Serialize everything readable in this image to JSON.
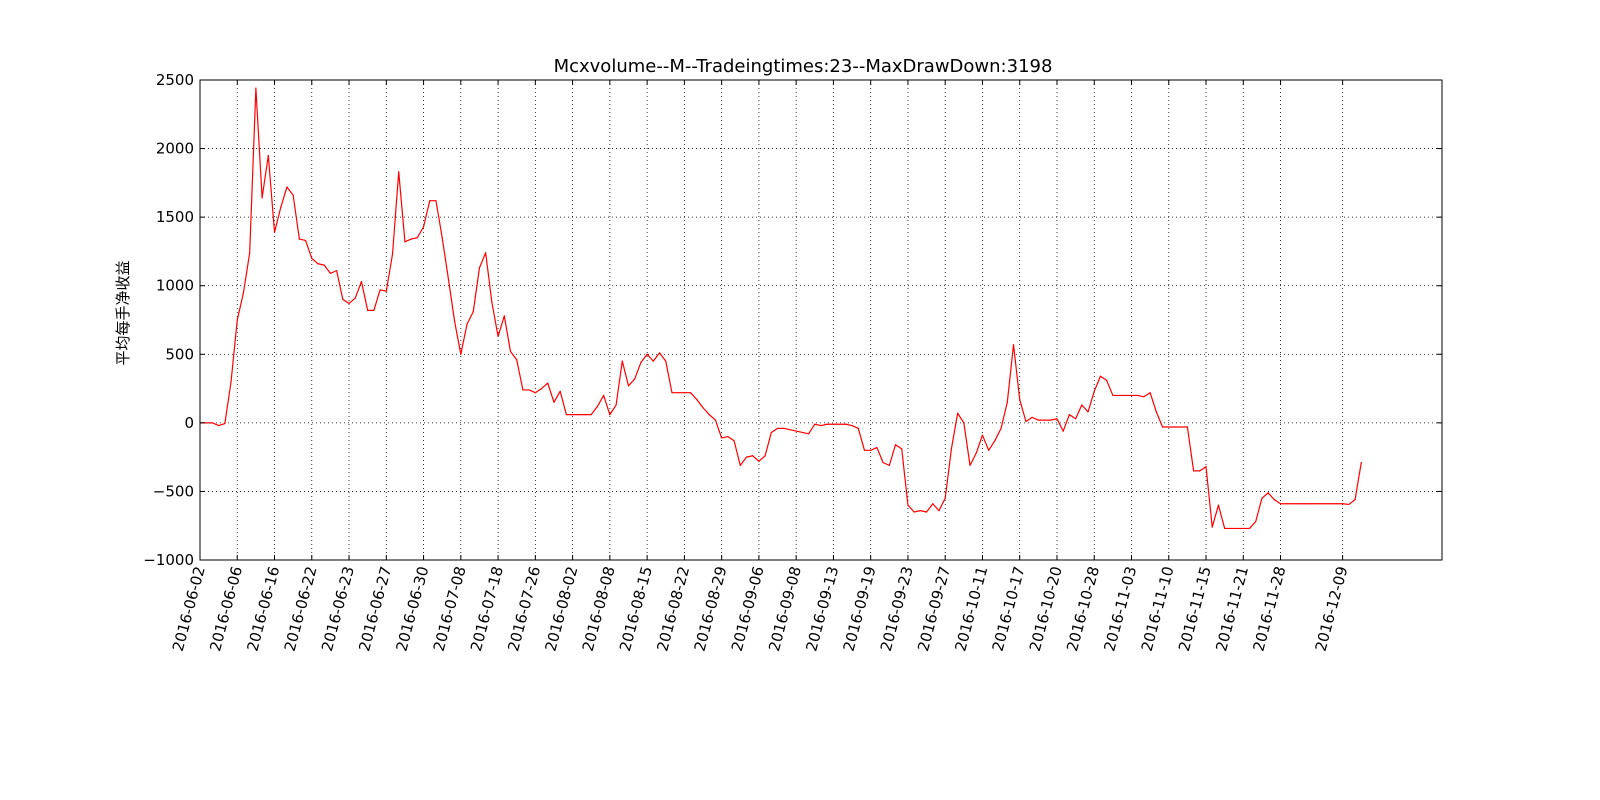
{
  "chart_data": {
    "type": "line",
    "title": "Mcxvolume--M--Tradeingtimes:23--MaxDrawDown:3198",
    "xlabel": "",
    "ylabel": "平均每手净收益",
    "ylim": [
      -1000,
      2500
    ],
    "yticks": [
      -1000,
      -500,
      0,
      500,
      1000,
      1500,
      2000,
      2500
    ],
    "ytick_labels": [
      "−1000",
      "−500",
      "0",
      "500",
      "1000",
      "1500",
      "2000",
      "2500"
    ],
    "x_range": [
      0,
      200
    ],
    "xticks": [
      {
        "label": "2016-06-02",
        "pos": 0
      },
      {
        "label": "2016-06-06",
        "pos": 6
      },
      {
        "label": "2016-06-16",
        "pos": 12
      },
      {
        "label": "2016-06-22",
        "pos": 18
      },
      {
        "label": "2016-06-23",
        "pos": 24
      },
      {
        "label": "2016-06-27",
        "pos": 30
      },
      {
        "label": "2016-06-30",
        "pos": 36
      },
      {
        "label": "2016-07-08",
        "pos": 42
      },
      {
        "label": "2016-07-18",
        "pos": 48
      },
      {
        "label": "2016-07-26",
        "pos": 54
      },
      {
        "label": "2016-08-02",
        "pos": 60
      },
      {
        "label": "2016-08-08",
        "pos": 66
      },
      {
        "label": "2016-08-15",
        "pos": 72
      },
      {
        "label": "2016-08-22",
        "pos": 78
      },
      {
        "label": "2016-08-29",
        "pos": 84
      },
      {
        "label": "2016-09-06",
        "pos": 90
      },
      {
        "label": "2016-09-08",
        "pos": 96
      },
      {
        "label": "2016-09-13",
        "pos": 102
      },
      {
        "label": "2016-09-19",
        "pos": 108
      },
      {
        "label": "2016-09-23",
        "pos": 114
      },
      {
        "label": "2016-09-27",
        "pos": 120
      },
      {
        "label": "2016-10-11",
        "pos": 126
      },
      {
        "label": "2016-10-17",
        "pos": 132
      },
      {
        "label": "2016-10-20",
        "pos": 138
      },
      {
        "label": "2016-10-28",
        "pos": 144
      },
      {
        "label": "2016-11-03",
        "pos": 150
      },
      {
        "label": "2016-11-10",
        "pos": 156
      },
      {
        "label": "2016-11-15",
        "pos": 162
      },
      {
        "label": "2016-11-21",
        "pos": 168
      },
      {
        "label": "2016-11-28",
        "pos": 174
      },
      {
        "label": "2016-12-09",
        "pos": 184
      }
    ],
    "grid": true,
    "line_color": "#ff0000",
    "series": [
      {
        "points": [
          [
            0,
            0
          ],
          [
            1,
            0
          ],
          [
            2,
            0
          ],
          [
            3,
            -20
          ],
          [
            4,
            -5
          ],
          [
            5,
            300
          ],
          [
            6,
            750
          ],
          [
            7,
            950
          ],
          [
            8,
            1240
          ],
          [
            9,
            2440
          ],
          [
            10,
            1640
          ],
          [
            11,
            1950
          ],
          [
            12,
            1390
          ],
          [
            13,
            1570
          ],
          [
            14,
            1720
          ],
          [
            15,
            1660
          ],
          [
            16,
            1340
          ],
          [
            17,
            1330
          ],
          [
            18,
            1200
          ],
          [
            19,
            1160
          ],
          [
            20,
            1150
          ],
          [
            21,
            1090
          ],
          [
            22,
            1110
          ],
          [
            23,
            900
          ],
          [
            24,
            870
          ],
          [
            25,
            910
          ],
          [
            26,
            1030
          ],
          [
            27,
            820
          ],
          [
            28,
            820
          ],
          [
            29,
            970
          ],
          [
            30,
            960
          ],
          [
            31,
            1230
          ],
          [
            32,
            1830
          ],
          [
            33,
            1320
          ],
          [
            34,
            1340
          ],
          [
            35,
            1350
          ],
          [
            36,
            1430
          ],
          [
            37,
            1620
          ],
          [
            38,
            1620
          ],
          [
            39,
            1350
          ],
          [
            40,
            1050
          ],
          [
            41,
            740
          ],
          [
            42,
            500
          ],
          [
            43,
            720
          ],
          [
            44,
            810
          ],
          [
            45,
            1130
          ],
          [
            46,
            1240
          ],
          [
            47,
            880
          ],
          [
            48,
            630
          ],
          [
            49,
            780
          ],
          [
            50,
            520
          ],
          [
            51,
            460
          ],
          [
            52,
            240
          ],
          [
            53,
            240
          ],
          [
            54,
            220
          ],
          [
            55,
            250
          ],
          [
            56,
            290
          ],
          [
            57,
            150
          ],
          [
            58,
            230
          ],
          [
            59,
            60
          ],
          [
            60,
            60
          ],
          [
            61,
            60
          ],
          [
            62,
            60
          ],
          [
            63,
            60
          ],
          [
            64,
            120
          ],
          [
            65,
            200
          ],
          [
            66,
            60
          ],
          [
            67,
            130
          ],
          [
            68,
            450
          ],
          [
            69,
            270
          ],
          [
            70,
            320
          ],
          [
            71,
            440
          ],
          [
            72,
            500
          ],
          [
            73,
            450
          ],
          [
            74,
            510
          ],
          [
            75,
            450
          ],
          [
            76,
            220
          ],
          [
            77,
            220
          ],
          [
            78,
            220
          ],
          [
            79,
            220
          ],
          [
            80,
            170
          ],
          [
            81,
            110
          ],
          [
            82,
            60
          ],
          [
            83,
            20
          ],
          [
            84,
            -110
          ],
          [
            85,
            -100
          ],
          [
            86,
            -130
          ],
          [
            87,
            -310
          ],
          [
            88,
            -250
          ],
          [
            89,
            -240
          ],
          [
            90,
            -280
          ],
          [
            91,
            -240
          ],
          [
            92,
            -70
          ],
          [
            93,
            -40
          ],
          [
            94,
            -40
          ],
          [
            95,
            -50
          ],
          [
            96,
            -60
          ],
          [
            97,
            -70
          ],
          [
            98,
            -80
          ],
          [
            99,
            -10
          ],
          [
            100,
            -20
          ],
          [
            101,
            -10
          ],
          [
            102,
            -10
          ],
          [
            103,
            -10
          ],
          [
            104,
            -10
          ],
          [
            105,
            -20
          ],
          [
            106,
            -40
          ],
          [
            107,
            -200
          ],
          [
            108,
            -200
          ],
          [
            109,
            -180
          ],
          [
            110,
            -290
          ],
          [
            111,
            -310
          ],
          [
            112,
            -160
          ],
          [
            113,
            -190
          ],
          [
            114,
            -600
          ],
          [
            115,
            -650
          ],
          [
            116,
            -640
          ],
          [
            117,
            -650
          ],
          [
            118,
            -590
          ],
          [
            119,
            -640
          ],
          [
            120,
            -550
          ],
          [
            121,
            -190
          ],
          [
            122,
            70
          ],
          [
            123,
            0
          ],
          [
            124,
            -310
          ],
          [
            125,
            -220
          ],
          [
            126,
            -90
          ],
          [
            127,
            -200
          ],
          [
            128,
            -130
          ],
          [
            129,
            -40
          ],
          [
            130,
            150
          ],
          [
            131,
            570
          ],
          [
            132,
            170
          ],
          [
            133,
            10
          ],
          [
            134,
            40
          ],
          [
            135,
            20
          ],
          [
            136,
            20
          ],
          [
            137,
            20
          ],
          [
            138,
            30
          ],
          [
            139,
            -60
          ],
          [
            140,
            60
          ],
          [
            141,
            30
          ],
          [
            142,
            130
          ],
          [
            143,
            80
          ],
          [
            144,
            230
          ],
          [
            145,
            340
          ],
          [
            146,
            310
          ],
          [
            147,
            200
          ],
          [
            148,
            200
          ],
          [
            149,
            200
          ],
          [
            150,
            200
          ],
          [
            151,
            200
          ],
          [
            152,
            190
          ],
          [
            153,
            220
          ],
          [
            154,
            80
          ],
          [
            155,
            -30
          ],
          [
            156,
            -30
          ],
          [
            157,
            -30
          ],
          [
            158,
            -30
          ],
          [
            159,
            -30
          ],
          [
            160,
            -350
          ],
          [
            161,
            -350
          ],
          [
            162,
            -320
          ],
          [
            163,
            -760
          ],
          [
            164,
            -600
          ],
          [
            165,
            -770
          ],
          [
            166,
            -770
          ],
          [
            167,
            -770
          ],
          [
            168,
            -770
          ],
          [
            169,
            -770
          ],
          [
            170,
            -720
          ],
          [
            171,
            -550
          ],
          [
            172,
            -510
          ],
          [
            173,
            -560
          ],
          [
            174,
            -590
          ],
          [
            175,
            -590
          ],
          [
            176,
            -590
          ],
          [
            177,
            -590
          ],
          [
            178,
            -590
          ],
          [
            179,
            -590
          ],
          [
            180,
            -590
          ],
          [
            181,
            -590
          ],
          [
            182,
            -590
          ],
          [
            183,
            -590
          ],
          [
            184,
            -590
          ],
          [
            185,
            -595
          ],
          [
            186,
            -560
          ],
          [
            187,
            -290
          ]
        ]
      }
    ]
  }
}
